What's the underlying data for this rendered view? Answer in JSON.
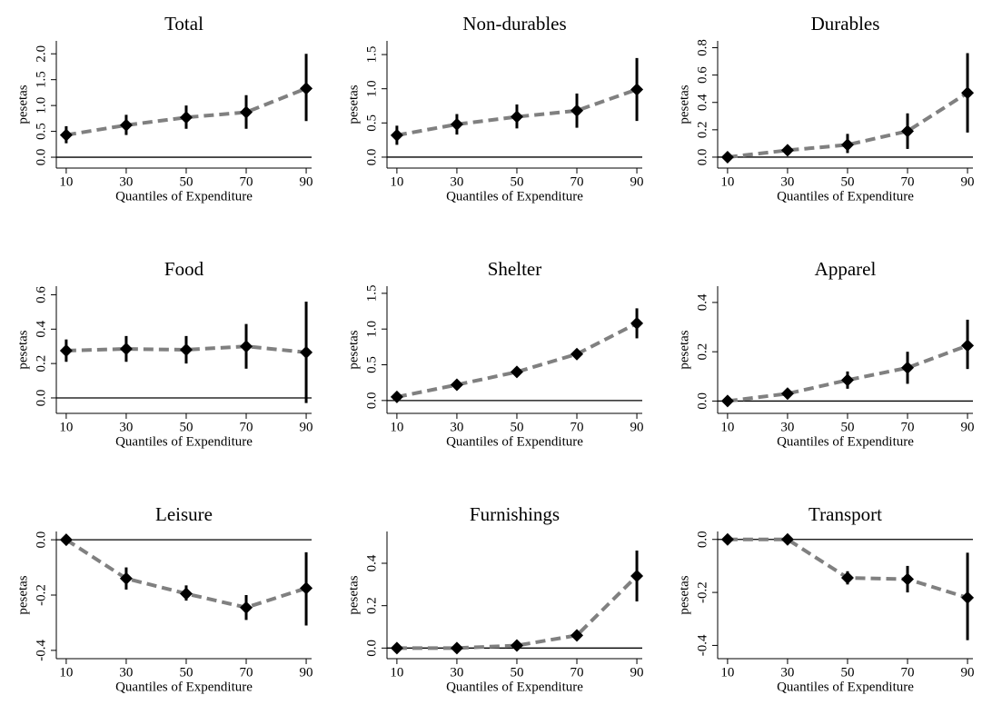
{
  "chart_data": [
    {
      "type": "line",
      "title": "Total",
      "x_label": "Quantiles of Expenditure",
      "y_label": "pesetas",
      "x": [
        10,
        30,
        50,
        70,
        90
      ],
      "values": [
        0.43,
        0.62,
        0.77,
        0.87,
        1.33
      ],
      "lower": [
        0.27,
        0.43,
        0.55,
        0.55,
        0.7
      ],
      "upper": [
        0.6,
        0.82,
        1.0,
        1.2,
        2.0
      ],
      "line_color": "#808080",
      "marker_color": "#000000",
      "reference_line": 0,
      "xlim": [
        6.7,
        91.8
      ],
      "xticks": [
        10,
        30,
        50,
        70,
        90
      ],
      "ylim": [
        -0.21,
        2.25
      ],
      "yticks": [
        {
          "value": 0,
          "label": "0.0"
        },
        0.5,
        {
          "value": 1,
          "label": "1.0"
        },
        1.5,
        {
          "value": 2,
          "label": "2.0"
        }
      ]
    },
    {
      "type": "line",
      "title": "Non-durables",
      "x_label": "Quantiles of Expenditure",
      "y_label": "pesetas",
      "x": [
        10,
        30,
        50,
        70,
        90
      ],
      "values": [
        0.32,
        0.48,
        0.59,
        0.68,
        0.99
      ],
      "lower": [
        0.18,
        0.33,
        0.42,
        0.43,
        0.53
      ],
      "upper": [
        0.46,
        0.63,
        0.77,
        0.93,
        1.45
      ],
      "line_color": "#808080",
      "marker_color": "#000000",
      "reference_line": 0,
      "xlim": [
        6.7,
        91.8
      ],
      "xticks": [
        10,
        30,
        50,
        70,
        90
      ],
      "ylim": [
        -0.16,
        1.7
      ],
      "yticks": [
        {
          "value": 0,
          "label": "0.0"
        },
        0.5,
        {
          "value": 1,
          "label": "1.0"
        },
        1.5
      ]
    },
    {
      "type": "line",
      "title": "Durables",
      "x_label": "Quantiles of Expenditure",
      "y_label": "pesetas",
      "x": [
        10,
        30,
        50,
        70,
        90
      ],
      "values": [
        0.0,
        0.05,
        0.09,
        0.19,
        0.47
      ],
      "lower": [
        -0.01,
        0.02,
        0.03,
        0.06,
        0.18
      ],
      "upper": [
        0.01,
        0.08,
        0.17,
        0.32,
        0.76
      ],
      "line_color": "#808080",
      "marker_color": "#000000",
      "reference_line": 0,
      "xlim": [
        6.7,
        91.8
      ],
      "xticks": [
        10,
        30,
        50,
        70,
        90
      ],
      "ylim": [
        -0.08,
        0.85
      ],
      "yticks": [
        {
          "value": 0,
          "label": "0.0"
        },
        0.2,
        0.4,
        0.6,
        0.8
      ]
    },
    {
      "type": "line",
      "title": "Food",
      "x_label": "Quantiles of Expenditure",
      "y_label": "pesetas",
      "x": [
        10,
        30,
        50,
        70,
        90
      ],
      "values": [
        0.275,
        0.285,
        0.28,
        0.3,
        0.265
      ],
      "lower": [
        0.21,
        0.21,
        0.2,
        0.17,
        -0.03
      ],
      "upper": [
        0.34,
        0.36,
        0.36,
        0.43,
        0.56
      ],
      "line_color": "#808080",
      "marker_color": "#000000",
      "reference_line": 0,
      "xlim": [
        6.7,
        91.8
      ],
      "xticks": [
        10,
        30,
        50,
        70,
        90
      ],
      "ylim": [
        -0.09,
        0.65
      ],
      "yticks": [
        {
          "value": 0,
          "label": "0.0"
        },
        0.2,
        0.4,
        0.6
      ]
    },
    {
      "type": "line",
      "title": "Shelter",
      "x_label": "Quantiles of Expenditure",
      "y_label": "pesetas",
      "x": [
        10,
        30,
        50,
        70,
        90
      ],
      "values": [
        0.05,
        0.22,
        0.4,
        0.65,
        1.08
      ],
      "lower": [
        0.03,
        0.19,
        0.36,
        0.59,
        0.87
      ],
      "upper": [
        0.07,
        0.25,
        0.44,
        0.71,
        1.29
      ],
      "line_color": "#808080",
      "marker_color": "#000000",
      "reference_line": 0,
      "xlim": [
        6.7,
        91.8
      ],
      "xticks": [
        10,
        30,
        50,
        70,
        90
      ],
      "ylim": [
        -0.18,
        1.6
      ],
      "yticks": [
        {
          "value": 0,
          "label": "0.0"
        },
        0.5,
        {
          "value": 1,
          "label": "1.0"
        },
        1.5
      ]
    },
    {
      "type": "line",
      "title": "Apparel",
      "x_label": "Quantiles of Expenditure",
      "y_label": "pesetas",
      "x": [
        10,
        30,
        50,
        70,
        90
      ],
      "values": [
        0.0,
        0.03,
        0.085,
        0.135,
        0.225
      ],
      "lower": [
        -0.005,
        0.02,
        0.05,
        0.07,
        0.13
      ],
      "upper": [
        0.005,
        0.04,
        0.12,
        0.2,
        0.33
      ],
      "line_color": "#808080",
      "marker_color": "#000000",
      "reference_line": 0,
      "xlim": [
        6.7,
        91.8
      ],
      "xticks": [
        10,
        30,
        50,
        70,
        90
      ],
      "ylim": [
        -0.05,
        0.466
      ],
      "yticks": [
        {
          "value": 0,
          "label": "0.0"
        },
        0.2,
        0.4
      ]
    },
    {
      "type": "line",
      "title": "Leisure",
      "x_label": "Quantiles of Expenditure",
      "y_label": "pesetas",
      "x": [
        10,
        30,
        50,
        70,
        90
      ],
      "values": [
        0.0,
        -0.14,
        -0.195,
        -0.245,
        -0.175
      ],
      "lower": [
        -0.005,
        -0.18,
        -0.22,
        -0.29,
        -0.31
      ],
      "upper": [
        0.005,
        -0.1,
        -0.165,
        -0.2,
        -0.045
      ],
      "line_color": "#808080",
      "marker_color": "#000000",
      "reference_line": 0,
      "xlim": [
        6.7,
        91.8
      ],
      "xticks": [
        10,
        30,
        50,
        70,
        90
      ],
      "ylim": [
        -0.43,
        0.03
      ],
      "yticks": [
        {
          "value": 0,
          "label": "0.0"
        },
        -0.2,
        -0.4
      ]
    },
    {
      "type": "line",
      "title": "Furnishings",
      "x_label": "Quantiles of Expenditure",
      "y_label": "pesetas",
      "x": [
        10,
        30,
        50,
        70,
        90
      ],
      "values": [
        0.0,
        0.0,
        0.012,
        0.06,
        0.34
      ],
      "lower": [
        -0.005,
        -0.005,
        0.0,
        0.045,
        0.22
      ],
      "upper": [
        0.005,
        0.005,
        0.025,
        0.075,
        0.46
      ],
      "line_color": "#808080",
      "marker_color": "#000000",
      "reference_line": 0,
      "xlim": [
        6.7,
        91.8
      ],
      "xticks": [
        10,
        30,
        50,
        70,
        90
      ],
      "ylim": [
        -0.05,
        0.55
      ],
      "yticks": [
        {
          "value": 0,
          "label": "0.0"
        },
        0.2,
        0.4
      ]
    },
    {
      "type": "line",
      "title": "Transport",
      "x_label": "Quantiles of Expenditure",
      "y_label": "pesetas",
      "x": [
        10,
        30,
        50,
        70,
        90
      ],
      "values": [
        0.0,
        0.0,
        -0.145,
        -0.15,
        -0.22
      ],
      "lower": [
        -0.005,
        -0.005,
        -0.17,
        -0.2,
        -0.38
      ],
      "upper": [
        0.005,
        0.005,
        -0.12,
        -0.1,
        -0.05
      ],
      "line_color": "#808080",
      "marker_color": "#000000",
      "reference_line": 0,
      "xlim": [
        6.7,
        91.8
      ],
      "xticks": [
        10,
        30,
        50,
        70,
        90
      ],
      "ylim": [
        -0.45,
        0.03
      ],
      "yticks": [
        {
          "value": 0,
          "label": "0.0"
        },
        -0.2,
        -0.4
      ]
    }
  ]
}
